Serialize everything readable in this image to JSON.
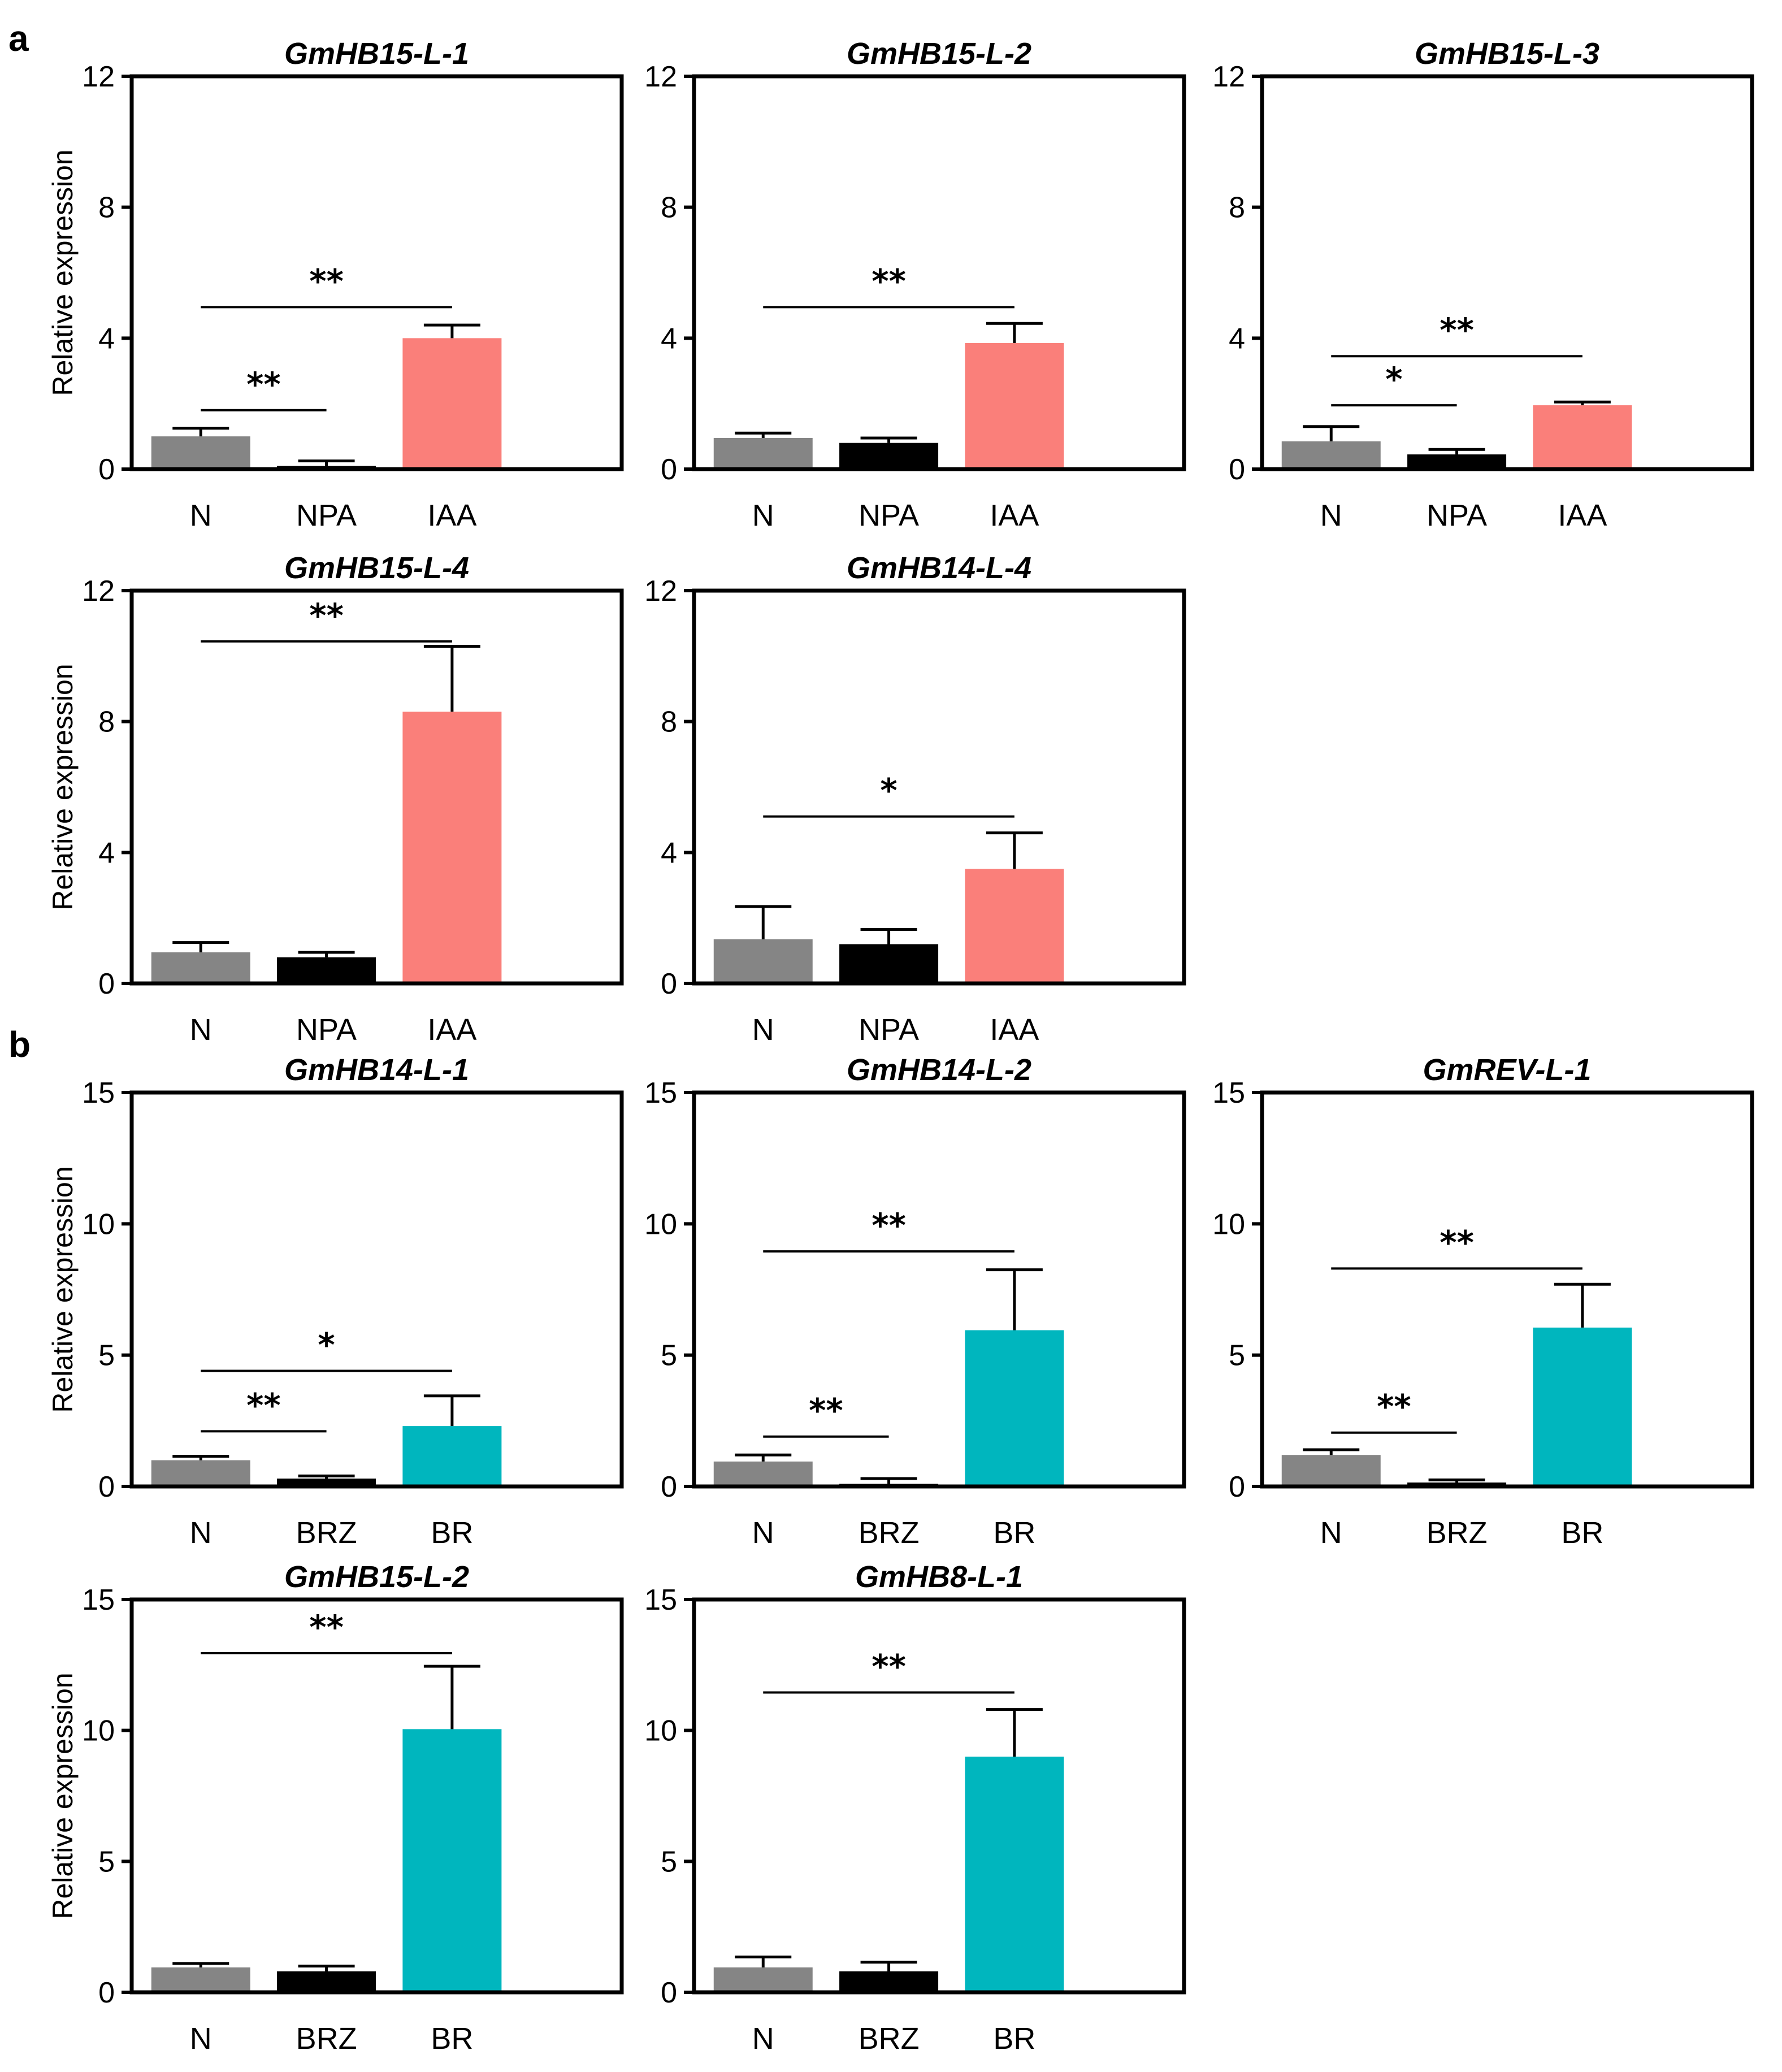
{
  "panel_labels": [
    "a",
    "b"
  ],
  "chart_data": [
    {
      "type": "bar",
      "title": "GmHB15-L-1",
      "ylabel": "Relative  expression",
      "ylim": [
        0,
        12
      ],
      "yticks": [
        0,
        4,
        8,
        12
      ],
      "categories": [
        "N",
        "NPA",
        "IAA"
      ],
      "values": [
        1.0,
        0.1,
        4.0
      ],
      "errors": [
        0.25,
        0.15,
        0.4
      ],
      "colors": [
        "#858585",
        "#000000",
        "#fa7f7a"
      ],
      "significance": [
        {
          "from": 0,
          "to": 2,
          "label": "**",
          "y": 4.95
        },
        {
          "from": 0,
          "to": 1,
          "label": "**",
          "y": 1.8
        }
      ]
    },
    {
      "type": "bar",
      "title": "GmHB15-L-2",
      "ylabel": "",
      "ylim": [
        0,
        12
      ],
      "yticks": [
        0,
        4,
        8,
        12
      ],
      "categories": [
        "N",
        "NPA",
        "IAA"
      ],
      "values": [
        0.95,
        0.8,
        3.85
      ],
      "errors": [
        0.15,
        0.15,
        0.6
      ],
      "colors": [
        "#858585",
        "#000000",
        "#fa7f7a"
      ],
      "significance": [
        {
          "from": 0,
          "to": 2,
          "label": "**",
          "y": 4.95
        }
      ]
    },
    {
      "type": "bar",
      "title": "GmHB15-L-3",
      "ylabel": "",
      "ylim": [
        0,
        12
      ],
      "yticks": [
        0,
        4,
        8,
        12
      ],
      "categories": [
        "N",
        "NPA",
        "IAA"
      ],
      "values": [
        0.85,
        0.45,
        1.95
      ],
      "errors": [
        0.45,
        0.15,
        0.1
      ],
      "colors": [
        "#858585",
        "#000000",
        "#fa7f7a"
      ],
      "significance": [
        {
          "from": 0,
          "to": 2,
          "label": "**",
          "y": 3.45
        },
        {
          "from": 0,
          "to": 1,
          "label": "*",
          "y": 1.95
        }
      ]
    },
    {
      "type": "bar",
      "title": "GmHB15-L-4",
      "ylabel": "Relative  expression",
      "ylim": [
        0,
        12
      ],
      "yticks": [
        0,
        4,
        8,
        12
      ],
      "categories": [
        "N",
        "NPA",
        "IAA"
      ],
      "values": [
        0.95,
        0.8,
        8.3
      ],
      "errors": [
        0.3,
        0.15,
        2.0
      ],
      "colors": [
        "#858585",
        "#000000",
        "#fa7f7a"
      ],
      "significance": [
        {
          "from": 0,
          "to": 2,
          "label": "**",
          "y": 10.45
        }
      ]
    },
    {
      "type": "bar",
      "title": "GmHB14-L-4",
      "ylabel": "",
      "ylim": [
        0,
        12
      ],
      "yticks": [
        0,
        4,
        8,
        12
      ],
      "categories": [
        "N",
        "NPA",
        "IAA"
      ],
      "values": [
        1.35,
        1.2,
        3.5
      ],
      "errors": [
        1.0,
        0.45,
        1.1
      ],
      "colors": [
        "#858585",
        "#000000",
        "#fa7f7a"
      ],
      "significance": [
        {
          "from": 0,
          "to": 2,
          "label": "*",
          "y": 5.1
        }
      ]
    },
    {
      "type": "bar",
      "title": "GmHB14-L-1",
      "ylabel": "Relative  expression",
      "ylim": [
        0,
        15
      ],
      "yticks": [
        0,
        5,
        10,
        15
      ],
      "categories": [
        "N",
        "BRZ",
        "BR"
      ],
      "values": [
        1.0,
        0.3,
        2.3
      ],
      "errors": [
        0.15,
        0.1,
        1.15
      ],
      "colors": [
        "#858585",
        "#000000",
        "#00b6be"
      ],
      "significance": [
        {
          "from": 0,
          "to": 2,
          "label": "*",
          "y": 4.4
        },
        {
          "from": 0,
          "to": 1,
          "label": "**",
          "y": 2.1
        }
      ]
    },
    {
      "type": "bar",
      "title": "GmHB14-L-2",
      "ylabel": "",
      "ylim": [
        0,
        15
      ],
      "yticks": [
        0,
        5,
        10,
        15
      ],
      "categories": [
        "N",
        "BRZ",
        "BR"
      ],
      "values": [
        0.95,
        0.1,
        5.95
      ],
      "errors": [
        0.25,
        0.2,
        2.3
      ],
      "colors": [
        "#858585",
        "#000000",
        "#00b6be"
      ],
      "significance": [
        {
          "from": 0,
          "to": 2,
          "label": "**",
          "y": 8.95
        },
        {
          "from": 0,
          "to": 1,
          "label": "**",
          "y": 1.9
        }
      ]
    },
    {
      "type": "bar",
      "title": "GmREV-L-1",
      "ylabel": "",
      "ylim": [
        0,
        15
      ],
      "yticks": [
        0,
        5,
        10,
        15
      ],
      "categories": [
        "N",
        "BRZ",
        "BR"
      ],
      "values": [
        1.2,
        0.15,
        6.05
      ],
      "errors": [
        0.2,
        0.1,
        1.65
      ],
      "colors": [
        "#858585",
        "#000000",
        "#00b6be"
      ],
      "significance": [
        {
          "from": 0,
          "to": 2,
          "label": "**",
          "y": 8.3
        },
        {
          "from": 0,
          "to": 1,
          "label": "**",
          "y": 2.05
        }
      ]
    },
    {
      "type": "bar",
      "title": "GmHB15-L-2",
      "ylabel": "Relative  expression",
      "ylim": [
        0,
        15
      ],
      "yticks": [
        0,
        5,
        10,
        15
      ],
      "categories": [
        "N",
        "BRZ",
        "BR"
      ],
      "values": [
        0.95,
        0.8,
        10.05
      ],
      "errors": [
        0.15,
        0.2,
        2.4
      ],
      "colors": [
        "#858585",
        "#000000",
        "#00b6be"
      ],
      "significance": [
        {
          "from": 0,
          "to": 2,
          "label": "**",
          "y": 12.95
        }
      ]
    },
    {
      "type": "bar",
      "title": "GmHB8-L-1",
      "ylabel": "",
      "ylim": [
        0,
        15
      ],
      "yticks": [
        0,
        5,
        10,
        15
      ],
      "categories": [
        "N",
        "BRZ",
        "BR"
      ],
      "values": [
        0.95,
        0.8,
        9.0
      ],
      "errors": [
        0.4,
        0.35,
        1.8
      ],
      "colors": [
        "#858585",
        "#000000",
        "#00b6be"
      ],
      "significance": [
        {
          "from": 0,
          "to": 2,
          "label": "**",
          "y": 11.45
        }
      ]
    }
  ]
}
